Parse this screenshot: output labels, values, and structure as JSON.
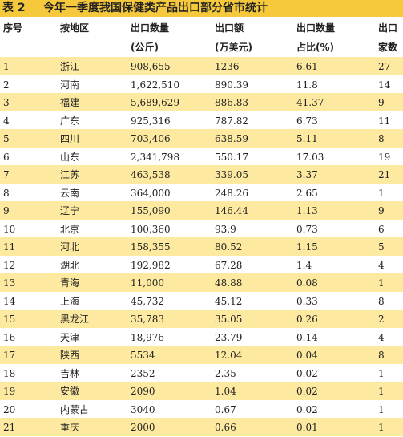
{
  "label": "表 2",
  "title": "今年一季度我国保健类产品出口部分省市统计",
  "table": {
    "columns": [
      [
        "序号"
      ],
      [
        "按地区"
      ],
      [
        "出口数量",
        "(公斤)"
      ],
      [
        "出口额",
        "(万美元)"
      ],
      [
        "出口数量",
        "占比(%)"
      ],
      [
        "出口",
        "家数"
      ]
    ],
    "rows": [
      [
        "1",
        "浙江",
        "908,655",
        "1236",
        "6.61",
        "27"
      ],
      [
        "2",
        "河南",
        "1,622,510",
        "890.39",
        "11.8",
        "14"
      ],
      [
        "3",
        "福建",
        "5,689,629",
        "886.83",
        "41.37",
        "9"
      ],
      [
        "4",
        "广东",
        "925,316",
        "787.82",
        "6.73",
        "11"
      ],
      [
        "5",
        "四川",
        "703,406",
        "638.59",
        "5.11",
        "8"
      ],
      [
        "6",
        "山东",
        "2,341,798",
        "550.17",
        "17.03",
        "19"
      ],
      [
        "7",
        "江苏",
        "463,538",
        "339.05",
        "3.37",
        "21"
      ],
      [
        "8",
        "云南",
        "364,000",
        "248.26",
        "2.65",
        "1"
      ],
      [
        "9",
        "辽宁",
        "155,090",
        "146.44",
        "1.13",
        "9"
      ],
      [
        "10",
        "北京",
        "100,360",
        "93.9",
        "0.73",
        "6"
      ],
      [
        "11",
        "河北",
        "158,355",
        "80.52",
        "1.15",
        "5"
      ],
      [
        "12",
        "湖北",
        "192,982",
        "67.28",
        "1.4",
        "4"
      ],
      [
        "13",
        "青海",
        "11,000",
        "48.88",
        "0.08",
        "1"
      ],
      [
        "14",
        "上海",
        "45,732",
        "45.12",
        "0.33",
        "8"
      ],
      [
        "15",
        "黑龙江",
        "35,783",
        "35.05",
        "0.26",
        "2"
      ],
      [
        "16",
        "天津",
        "18,976",
        "23.79",
        "0.14",
        "4"
      ],
      [
        "17",
        "陕西",
        "5534",
        "12.04",
        "0.04",
        "8"
      ],
      [
        "18",
        "吉林",
        "2352",
        "2.35",
        "0.02",
        "1"
      ],
      [
        "19",
        "安徽",
        "2090",
        "1.04",
        "0.02",
        "1"
      ],
      [
        "20",
        "内蒙古",
        "3040",
        "0.67",
        "0.02",
        "1"
      ],
      [
        "21",
        "重庆",
        "2000",
        "0.66",
        "0.01",
        "1"
      ]
    ]
  }
}
